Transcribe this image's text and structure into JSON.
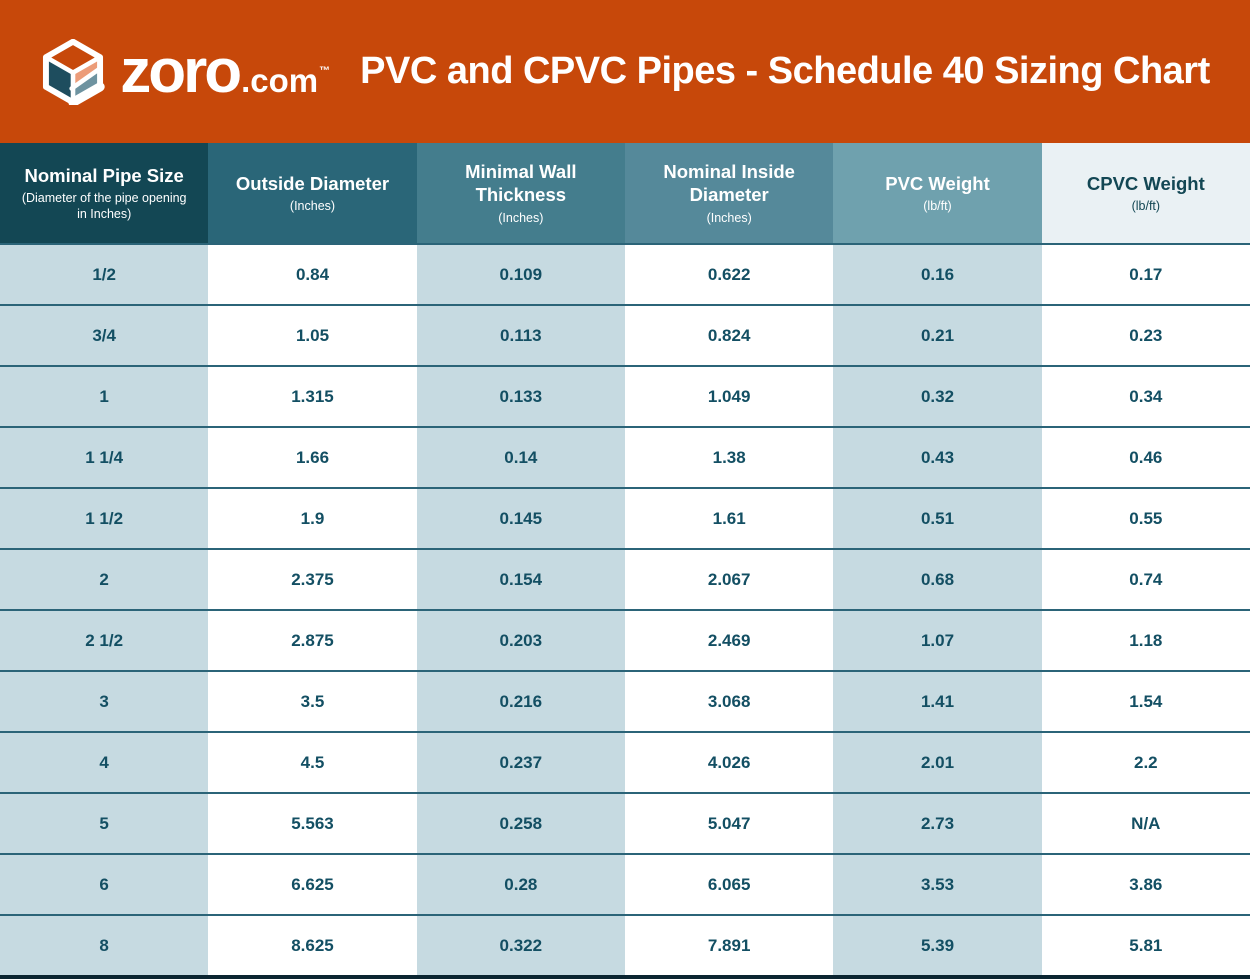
{
  "banner": {
    "background": "#C7480A",
    "logo": {
      "brand": "zoro",
      "domain": ".com",
      "trademark": "™"
    },
    "title": "PVC and CPVC Pipes - Schedule 40 Sizing Chart"
  },
  "colors": {
    "banner_orange": "#C7480A",
    "cell_text": "#134F63",
    "row_border": "#2B6478",
    "footer_bar": "#0B2531",
    "logo_teal": "#1E4D5E",
    "logo_peach": "#EC9C79",
    "logo_gray_blue": "#6E93A0",
    "light_cell": "#C6DAE1",
    "white_cell": "#FFFFFF"
  },
  "chart_data": {
    "type": "table",
    "title": "PVC and CPVC Pipes - Schedule 40 Sizing Chart",
    "columns": [
      {
        "id": "nominal-pipe-size",
        "title": "Nominal Pipe Size",
        "subtitle": "(Diameter of the pipe opening in Inches)",
        "header_bg": "#134754",
        "header_text": "#FFFFFF",
        "cell_bg": "#C6DAE1"
      },
      {
        "id": "outside-diameter",
        "title": "Outside Diameter",
        "subtitle": "(Inches)",
        "header_bg": "#2A6678",
        "header_text": "#FFFFFF",
        "cell_bg": "#FFFFFF"
      },
      {
        "id": "minimal-wall-thickness",
        "title": "Minimal Wall Thickness",
        "subtitle": "(Inches)",
        "header_bg": "#447D8D",
        "header_text": "#FFFFFF",
        "cell_bg": "#C6DAE1"
      },
      {
        "id": "nominal-inside-diameter",
        "title": "Nominal Inside Diameter",
        "subtitle": "(Inches)",
        "header_bg": "#55899A",
        "header_text": "#FFFFFF",
        "cell_bg": "#FFFFFF"
      },
      {
        "id": "pvc-weight",
        "title": "PVC Weight",
        "subtitle": "(lb/ft)",
        "header_bg": "#6FA1AE",
        "header_text": "#FFFFFF",
        "cell_bg": "#C6DAE1"
      },
      {
        "id": "cpvc-weight",
        "title": "CPVC Weight",
        "subtitle": "(lb/ft)",
        "header_bg": "#EAF1F4",
        "header_text": "#134754",
        "cell_bg": "#FFFFFF"
      }
    ],
    "rows": [
      [
        "1/2",
        "0.84",
        "0.109",
        "0.622",
        "0.16",
        "0.17"
      ],
      [
        "3/4",
        "1.05",
        "0.113",
        "0.824",
        "0.21",
        "0.23"
      ],
      [
        "1",
        "1.315",
        "0.133",
        "1.049",
        "0.32",
        "0.34"
      ],
      [
        "1 1/4",
        "1.66",
        "0.14",
        "1.38",
        "0.43",
        "0.46"
      ],
      [
        "1 1/2",
        "1.9",
        "0.145",
        "1.61",
        "0.51",
        "0.55"
      ],
      [
        "2",
        "2.375",
        "0.154",
        "2.067",
        "0.68",
        "0.74"
      ],
      [
        "2 1/2",
        "2.875",
        "0.203",
        "2.469",
        "1.07",
        "1.18"
      ],
      [
        "3",
        "3.5",
        "0.216",
        "3.068",
        "1.41",
        "1.54"
      ],
      [
        "4",
        "4.5",
        "0.237",
        "4.026",
        "2.01",
        "2.2"
      ],
      [
        "5",
        "5.563",
        "0.258",
        "5.047",
        "2.73",
        "N/A"
      ],
      [
        "6",
        "6.625",
        "0.28",
        "6.065",
        "3.53",
        "3.86"
      ],
      [
        "8",
        "8.625",
        "0.322",
        "7.891",
        "5.39",
        "5.81"
      ]
    ]
  }
}
